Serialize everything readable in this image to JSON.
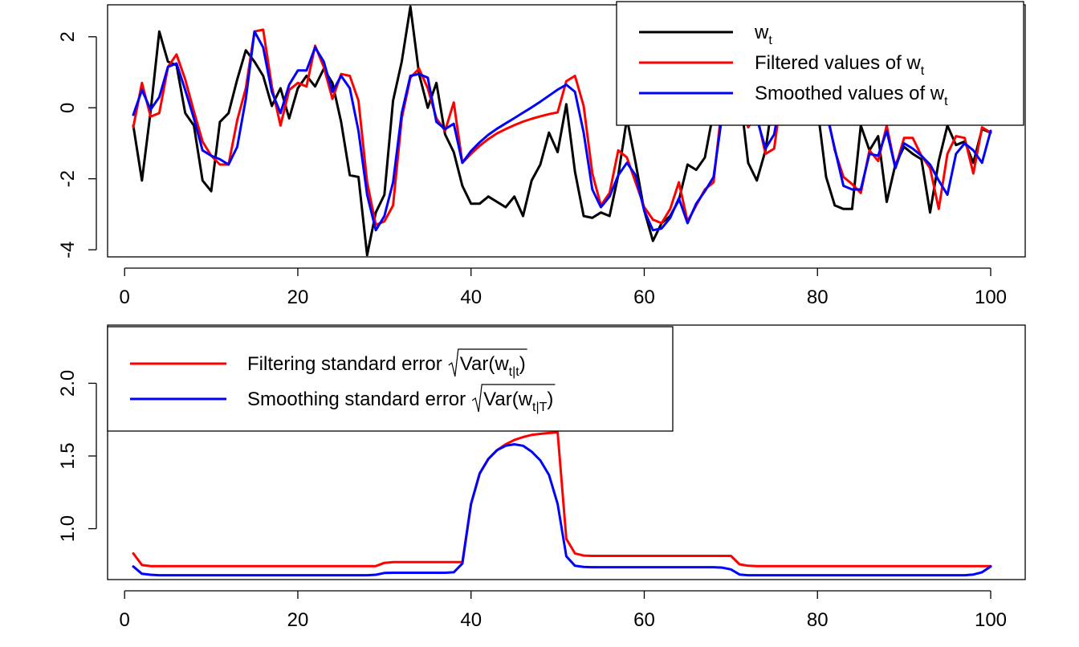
{
  "chart_data": [
    {
      "type": "line",
      "xlim": [
        1,
        100
      ],
      "ylim": [
        -4.2,
        2.9
      ],
      "x_ticks": [
        0,
        20,
        40,
        60,
        80,
        100
      ],
      "x_tick_labels": [
        "0",
        "20",
        "40",
        "60",
        "80",
        "100"
      ],
      "y_ticks": [
        -4,
        -2,
        0,
        2
      ],
      "y_tick_labels": [
        "-4",
        "-2",
        "0",
        "2"
      ],
      "legend_position": "top-right",
      "grid": false,
      "legend": [
        {
          "series": 0,
          "text": "w",
          "sub": "t"
        },
        {
          "series": 1,
          "text": "Filtered values of w",
          "sub": "t"
        },
        {
          "series": 2,
          "text": "Smoothed values of w",
          "sub": "t"
        }
      ],
      "series": [
        {
          "name": "w_t",
          "color": "#000000",
          "x_start": 1,
          "values": [
            -0.5,
            -2.05,
            -0.1,
            2.15,
            1.3,
            1.2,
            -0.15,
            -0.5,
            -2.05,
            -2.35,
            -0.4,
            -0.15,
            0.8,
            1.62,
            1.3,
            0.9,
            0.05,
            0.55,
            -0.3,
            0.55,
            0.9,
            0.6,
            1.1,
            0.7,
            -0.4,
            -1.9,
            -1.95,
            -4.15,
            -2.95,
            -2.45,
            0.2,
            1.3,
            2.85,
            0.95,
            0.0,
            0.7,
            -0.75,
            -1.25,
            -2.2,
            -2.7,
            -2.7,
            -2.5,
            -2.65,
            -2.8,
            -2.5,
            -3.05,
            -2.05,
            -1.6,
            -0.7,
            -1.25,
            0.1,
            -1.8,
            -3.05,
            -3.1,
            -2.95,
            -3.05,
            -1.9,
            -0.3,
            -1.55,
            -2.9,
            -3.75,
            -3.25,
            -3.05,
            -2.6,
            -1.6,
            -1.75,
            -1.4,
            -0.1,
            0.7,
            0.6,
            0.5,
            -1.55,
            -2.05,
            -1.2,
            0.5,
            0.95,
            0.8,
            0.3,
            0.4,
            0.0,
            -1.95,
            -2.75,
            -2.85,
            -2.85,
            -0.5,
            -1.2,
            -0.8,
            -2.65,
            -1.6,
            -1.1,
            -1.3,
            -1.45,
            -2.95,
            -1.5,
            -0.5,
            -1.05,
            -0.95,
            -1.55,
            -0.6,
            -0.7
          ]
        },
        {
          "name": "filtered",
          "color": "#ff0000",
          "x_start": 1,
          "values": [
            -0.55,
            0.7,
            -0.25,
            -0.15,
            1.15,
            1.5,
            0.8,
            -0.1,
            -0.95,
            -1.35,
            -1.6,
            -1.6,
            -0.35,
            0.55,
            2.15,
            2.2,
            0.6,
            -0.5,
            0.5,
            0.7,
            0.6,
            1.75,
            1.15,
            0.25,
            0.95,
            0.9,
            0.2,
            -2.1,
            -3.3,
            -3.2,
            -2.75,
            -0.3,
            0.85,
            1.1,
            0.55,
            -0.3,
            -0.65,
            0.15,
            -1.55,
            -1.3,
            -1.07,
            -0.88,
            -0.72,
            -0.6,
            -0.49,
            -0.39,
            -0.31,
            -0.24,
            -0.18,
            -0.13,
            0.75,
            0.9,
            0.05,
            -1.85,
            -2.75,
            -2.4,
            -1.2,
            -1.4,
            -2.1,
            -2.8,
            -3.15,
            -3.25,
            -2.85,
            -2.1,
            -3.2,
            -2.75,
            -2.3,
            -2.1,
            0.15,
            0.85,
            0.5,
            -0.55,
            -0.2,
            -1.3,
            -1.15,
            0.65,
            0.9,
            0.4,
            0.65,
            0.4,
            0.0,
            -1.2,
            -1.95,
            -2.15,
            -2.4,
            -1.2,
            -1.5,
            -0.5,
            -1.7,
            -0.85,
            -0.85,
            -1.35,
            -1.7,
            -2.85,
            -1.3,
            -0.8,
            -0.85,
            -1.85,
            -0.55,
            -0.7
          ]
        },
        {
          "name": "smoothed",
          "color": "#0000ff",
          "x_start": 1,
          "values": [
            -0.2,
            0.5,
            -0.05,
            0.3,
            1.15,
            1.25,
            0.5,
            -0.3,
            -1.2,
            -1.35,
            -1.45,
            -1.6,
            -1.1,
            0.25,
            2.15,
            1.7,
            0.45,
            -0.15,
            0.65,
            1.05,
            1.05,
            1.7,
            1.3,
            0.45,
            0.9,
            0.55,
            -0.65,
            -2.45,
            -3.45,
            -3.05,
            -2.1,
            -0.15,
            0.9,
            0.95,
            0.85,
            -0.4,
            -0.6,
            -0.45,
            -1.55,
            -1.22,
            -0.97,
            -0.76,
            -0.59,
            -0.44,
            -0.29,
            -0.14,
            0.01,
            0.17,
            0.34,
            0.51,
            0.65,
            0.45,
            -0.7,
            -2.3,
            -2.8,
            -2.5,
            -1.9,
            -1.55,
            -1.9,
            -2.9,
            -3.45,
            -3.4,
            -3.1,
            -2.55,
            -3.25,
            -2.7,
            -2.35,
            -1.95,
            -0.2,
            0.55,
            0.3,
            -0.25,
            -0.3,
            -1.15,
            -0.75,
            0.6,
            0.75,
            0.4,
            0.6,
            0.35,
            -0.1,
            -1.15,
            -2.2,
            -2.3,
            -2.3,
            -1.3,
            -1.35,
            -0.65,
            -1.7,
            -1.0,
            -1.15,
            -1.35,
            -1.6,
            -2.05,
            -2.45,
            -1.3,
            -1.0,
            -1.2,
            -1.55,
            -0.65
          ]
        }
      ]
    },
    {
      "type": "line",
      "xlim": [
        1,
        100
      ],
      "ylim": [
        0.65,
        2.4
      ],
      "x_ticks": [
        0,
        20,
        40,
        60,
        80,
        100
      ],
      "x_tick_labels": [
        "0",
        "20",
        "40",
        "60",
        "80",
        "100"
      ],
      "y_ticks": [
        1.0,
        1.5,
        2.0
      ],
      "y_tick_labels": [
        "1.0",
        "1.5",
        "2.0"
      ],
      "legend_position": "top-left",
      "grid": false,
      "legend": [
        {
          "series": 0,
          "text": "Filtering standard error",
          "radicand": "Var(w",
          "sub": "t|t",
          "close": ")"
        },
        {
          "series": 1,
          "text": "Smoothing standard error",
          "radicand": "Var(w",
          "sub": "t|T",
          "close": ")"
        }
      ],
      "series": [
        {
          "name": "filtering_se",
          "color": "#ff0000",
          "x_start": 1,
          "values": [
            0.83,
            0.75,
            0.743,
            0.743,
            0.743,
            0.743,
            0.743,
            0.743,
            0.743,
            0.743,
            0.743,
            0.743,
            0.743,
            0.743,
            0.743,
            0.743,
            0.743,
            0.743,
            0.743,
            0.743,
            0.743,
            0.743,
            0.743,
            0.743,
            0.743,
            0.743,
            0.743,
            0.743,
            0.743,
            0.765,
            0.77,
            0.77,
            0.77,
            0.77,
            0.77,
            0.77,
            0.77,
            0.77,
            0.77,
            1.17,
            1.38,
            1.48,
            1.54,
            1.58,
            1.61,
            1.63,
            1.645,
            1.652,
            1.658,
            1.662,
            0.93,
            0.83,
            0.815,
            0.813,
            0.813,
            0.813,
            0.813,
            0.813,
            0.813,
            0.813,
            0.813,
            0.813,
            0.813,
            0.813,
            0.813,
            0.813,
            0.813,
            0.813,
            0.813,
            0.813,
            0.755,
            0.745,
            0.743,
            0.743,
            0.743,
            0.743,
            0.743,
            0.743,
            0.743,
            0.743,
            0.743,
            0.743,
            0.743,
            0.743,
            0.743,
            0.743,
            0.743,
            0.743,
            0.743,
            0.743,
            0.743,
            0.743,
            0.743,
            0.743,
            0.743,
            0.743,
            0.743,
            0.743,
            0.743,
            0.743
          ]
        },
        {
          "name": "smoothing_se",
          "color": "#0000ff",
          "x_start": 1,
          "values": [
            0.74,
            0.69,
            0.683,
            0.68,
            0.68,
            0.68,
            0.68,
            0.68,
            0.68,
            0.68,
            0.68,
            0.68,
            0.68,
            0.68,
            0.68,
            0.68,
            0.68,
            0.68,
            0.68,
            0.68,
            0.68,
            0.68,
            0.68,
            0.68,
            0.68,
            0.68,
            0.68,
            0.68,
            0.683,
            0.695,
            0.697,
            0.697,
            0.697,
            0.697,
            0.697,
            0.697,
            0.697,
            0.7,
            0.76,
            1.17,
            1.38,
            1.48,
            1.54,
            1.57,
            1.58,
            1.57,
            1.53,
            1.47,
            1.37,
            1.17,
            0.81,
            0.745,
            0.737,
            0.735,
            0.735,
            0.735,
            0.735,
            0.735,
            0.735,
            0.735,
            0.735,
            0.735,
            0.735,
            0.735,
            0.735,
            0.735,
            0.735,
            0.735,
            0.732,
            0.72,
            0.685,
            0.68,
            0.68,
            0.68,
            0.68,
            0.68,
            0.68,
            0.68,
            0.68,
            0.68,
            0.68,
            0.68,
            0.68,
            0.68,
            0.68,
            0.68,
            0.68,
            0.68,
            0.68,
            0.68,
            0.68,
            0.68,
            0.68,
            0.68,
            0.68,
            0.68,
            0.68,
            0.685,
            0.7,
            0.74
          ]
        }
      ]
    }
  ]
}
